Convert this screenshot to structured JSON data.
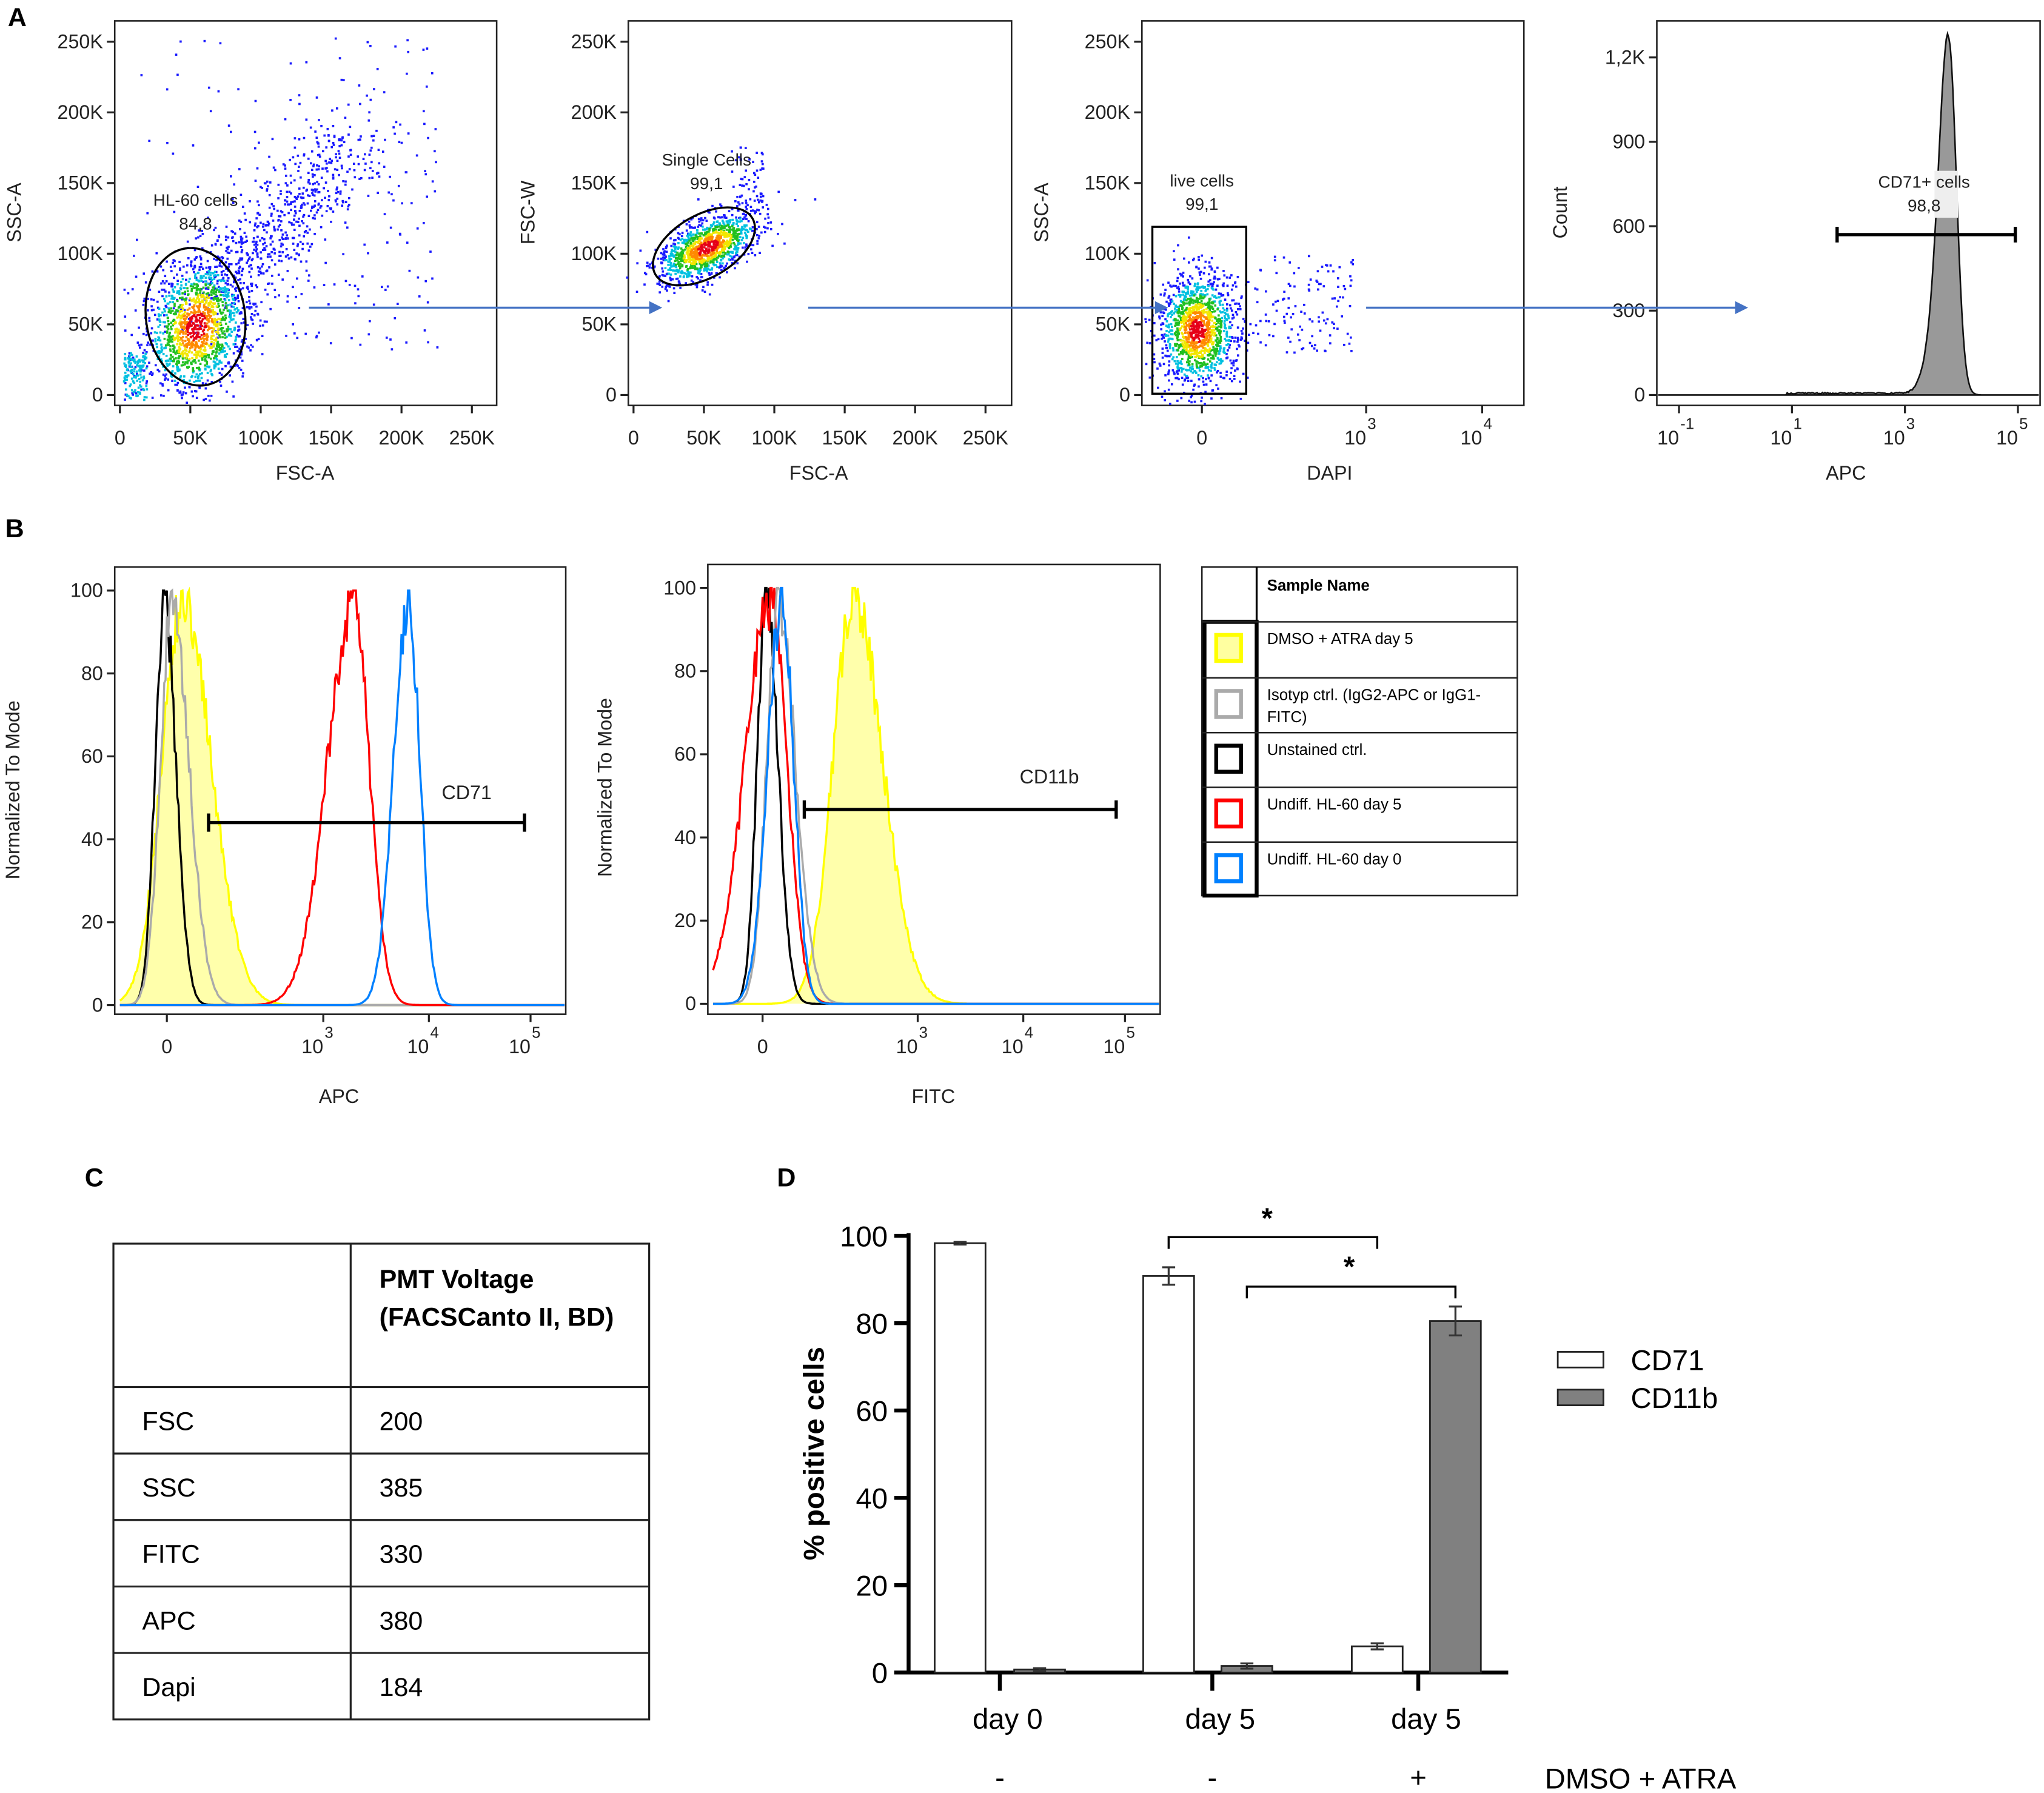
{
  "panel_labels": {
    "A": "A",
    "B": "B",
    "C": "C",
    "D": "D"
  },
  "colors": {
    "arrow": "#4472c4",
    "yellow": "#ffff00",
    "gray": "#aaaaaa",
    "black": "#000000",
    "red": "#ff0000",
    "blue": "#0080ff",
    "bar_cd11b": "#808080"
  },
  "chart_data": [
    {
      "id": "A1",
      "type": "scatter",
      "xlabel": "FSC-A",
      "ylabel": "SSC-A",
      "xlim": [
        0,
        262144
      ],
      "ylim": [
        0,
        262144
      ],
      "xticks": [
        {
          "value": 0,
          "label": "0"
        },
        {
          "value": 50000,
          "label": "50K"
        },
        {
          "value": 100000,
          "label": "100K"
        },
        {
          "value": 150000,
          "label": "150K"
        },
        {
          "value": 200000,
          "label": "200K"
        },
        {
          "value": 250000,
          "label": "250K"
        }
      ],
      "yticks": [
        {
          "value": 0,
          "label": "0"
        },
        {
          "value": 50000,
          "label": "50K"
        },
        {
          "value": 100000,
          "label": "100K"
        },
        {
          "value": 150000,
          "label": "150K"
        },
        {
          "value": 200000,
          "label": "200K"
        },
        {
          "value": 250000,
          "label": "250K"
        }
      ],
      "gate": {
        "name": "HL-60 cells",
        "value": "84,8",
        "shape": "ellipse"
      }
    },
    {
      "id": "A2",
      "type": "scatter",
      "xlabel": "FSC-A",
      "ylabel": "FSC-W",
      "xlim": [
        0,
        262144
      ],
      "ylim": [
        0,
        262144
      ],
      "xticks": [
        {
          "value": 0,
          "label": "0"
        },
        {
          "value": 50000,
          "label": "50K"
        },
        {
          "value": 100000,
          "label": "100K"
        },
        {
          "value": 150000,
          "label": "150K"
        },
        {
          "value": 200000,
          "label": "200K"
        },
        {
          "value": 250000,
          "label": "250K"
        }
      ],
      "yticks": [
        {
          "value": 0,
          "label": "0"
        },
        {
          "value": 50000,
          "label": "50K"
        },
        {
          "value": 100000,
          "label": "100K"
        },
        {
          "value": 150000,
          "label": "150K"
        },
        {
          "value": 200000,
          "label": "200K"
        },
        {
          "value": 250000,
          "label": "250K"
        }
      ],
      "gate": {
        "name": "Single Cells",
        "value": "99,1",
        "shape": "ellipse"
      }
    },
    {
      "id": "A3",
      "type": "scatter",
      "xlabel": "DAPI",
      "ylabel": "SSC-A",
      "xscale": "biexponential",
      "ylim": [
        0,
        262144
      ],
      "xticks": [
        {
          "value": 0,
          "label": "0",
          "exp": ""
        },
        {
          "value": 1000,
          "label": "10",
          "exp": "3"
        },
        {
          "value": 10000,
          "label": "10",
          "exp": "4"
        }
      ],
      "yticks": [
        {
          "value": 0,
          "label": "0"
        },
        {
          "value": 50000,
          "label": "50K"
        },
        {
          "value": 100000,
          "label": "100K"
        },
        {
          "value": 150000,
          "label": "150K"
        },
        {
          "value": 200000,
          "label": "200K"
        },
        {
          "value": 250000,
          "label": "250K"
        }
      ],
      "gate": {
        "name": "live cells",
        "value": "99,1",
        "shape": "rectangle"
      }
    },
    {
      "id": "A4",
      "type": "histogram",
      "xlabel": "APC",
      "ylabel": "Count",
      "xscale": "log",
      "ylim": [
        0,
        1300
      ],
      "xticks": [
        {
          "value": 0.1,
          "label": "10",
          "exp": "-1"
        },
        {
          "value": 10,
          "label": "10",
          "exp": "1"
        },
        {
          "value": 1000,
          "label": "10",
          "exp": "3"
        },
        {
          "value": 100000,
          "label": "10",
          "exp": "5"
        }
      ],
      "yticks": [
        {
          "value": 0,
          "label": "0"
        },
        {
          "value": 300,
          "label": "300"
        },
        {
          "value": 600,
          "label": "600"
        },
        {
          "value": 900,
          "label": "900"
        },
        {
          "value": 1200,
          "label": "1,2K"
        }
      ],
      "peak": {
        "apc": 5900,
        "count": 1270
      },
      "gate": {
        "name": "CD71+ cells",
        "value": "98,8",
        "range": [
          63,
          100000
        ]
      }
    },
    {
      "id": "B1",
      "type": "line",
      "xlabel": "APC",
      "ylabel": "Normalized To Mode",
      "xscale": "biexponential",
      "ylim": [
        0,
        100
      ],
      "xticks": [
        {
          "value": 0,
          "label": "0",
          "exp": ""
        },
        {
          "value": 1000,
          "label": "10",
          "exp": "3"
        },
        {
          "value": 10000,
          "label": "10",
          "exp": "4"
        },
        {
          "value": 100000,
          "label": "10",
          "exp": "5"
        }
      ],
      "yticks": [
        {
          "value": 0,
          "label": "0"
        },
        {
          "value": 20,
          "label": "20"
        },
        {
          "value": 40,
          "label": "40"
        },
        {
          "value": 60,
          "label": "60"
        },
        {
          "value": 80,
          "label": "80"
        },
        {
          "value": 100,
          "label": "100"
        }
      ],
      "gate": {
        "name": "CD71",
        "range": [
          80,
          85000
        ]
      },
      "series": [
        {
          "sample": "Unstained ctrl.",
          "color": "#000000",
          "peak": -5
        },
        {
          "sample": "Isotyp ctrl.",
          "color": "#aaaaaa",
          "peak": 10
        },
        {
          "sample": "DMSO + ATRA day 5",
          "color": "#ffff00",
          "peak": 30,
          "filled": true
        },
        {
          "sample": "Undiff. HL-60 day 5",
          "color": "#ff0000",
          "peak": 1950
        },
        {
          "sample": "Undiff. HL-60 day 0",
          "color": "#0080ff",
          "peak": 6500
        }
      ]
    },
    {
      "id": "B2",
      "type": "line",
      "xlabel": "FITC",
      "ylabel": "Normalized To Mode",
      "xscale": "biexponential",
      "ylim": [
        0,
        100
      ],
      "xticks": [
        {
          "value": 0,
          "label": "0",
          "exp": ""
        },
        {
          "value": 1000,
          "label": "10",
          "exp": "3"
        },
        {
          "value": 10000,
          "label": "10",
          "exp": "4"
        },
        {
          "value": 100000,
          "label": "10",
          "exp": "5"
        }
      ],
      "yticks": [
        {
          "value": 0,
          "label": "0"
        },
        {
          "value": 20,
          "label": "20"
        },
        {
          "value": 40,
          "label": "40"
        },
        {
          "value": 60,
          "label": "60"
        },
        {
          "value": 80,
          "label": "80"
        },
        {
          "value": 100,
          "label": "100"
        }
      ],
      "gate": {
        "name": "CD11b",
        "range": [
          80,
          80000
        ]
      },
      "series": [
        {
          "sample": "Unstained ctrl.",
          "color": "#000000",
          "peak": 7
        },
        {
          "sample": "Undiff. HL-60 day 5",
          "color": "#ff0000",
          "peak": 17
        },
        {
          "sample": "Isotyp ctrl.",
          "color": "#aaaaaa",
          "peak": 30
        },
        {
          "sample": "Undiff. HL-60 day 0",
          "color": "#0080ff",
          "peak": 37
        },
        {
          "sample": "DMSO + ATRA day 5",
          "color": "#ffff00",
          "peak": 245,
          "filled": true
        }
      ]
    },
    {
      "id": "D",
      "type": "bar",
      "ylabel": "% positive cells",
      "ylim": [
        0,
        100
      ],
      "yticks": [
        "0",
        "20",
        "40",
        "60",
        "80",
        "100"
      ],
      "categories": [
        "day 0",
        "day 5",
        "day 5"
      ],
      "treatment": {
        "label": "DMSO + ATRA",
        "values": [
          "-",
          "-",
          "+"
        ]
      },
      "series": [
        {
          "name": "CD71",
          "color": "#ffffff",
          "values": [
            98.3,
            90.8,
            6.0
          ],
          "errors": [
            0.3,
            2.0,
            0.7
          ]
        },
        {
          "name": "CD11b",
          "color": "#808080",
          "values": [
            0.7,
            1.5,
            80.5
          ],
          "errors": [
            0.3,
            0.6,
            3.3
          ]
        }
      ],
      "significance": [
        {
          "from": "CD71 day 5",
          "to": "CD71 day 5 DMSO + ATRA",
          "label": "*"
        },
        {
          "from": "CD11b day 5",
          "to": "CD11b day 5 DMSO + ATRA",
          "label": "*"
        }
      ],
      "legend": "right"
    }
  ],
  "legend_table": {
    "header": "Sample Name",
    "rows": [
      {
        "color": "#ffff00",
        "fill": "#ffffa0",
        "lines": [
          "DMSO + ATRA day 5"
        ]
      },
      {
        "color": "#aaaaaa",
        "fill": "#ffffff",
        "lines": [
          "Isotyp ctrl. (IgG2-APC or IgG1-",
          "FITC)"
        ]
      },
      {
        "color": "#000000",
        "fill": "#ffffff",
        "lines": [
          "Unstained ctrl."
        ]
      },
      {
        "color": "#ff0000",
        "fill": "#ffffff",
        "lines": [
          "Undiff. HL-60 day 5"
        ]
      },
      {
        "color": "#0080ff",
        "fill": "#ffffff",
        "lines": [
          "Undiff. HL-60 day 0"
        ]
      }
    ]
  },
  "pmt_table": {
    "header": [
      "PMT Voltage",
      "(FACSCanto II, BD)"
    ],
    "rows": [
      {
        "channel": "FSC",
        "voltage": "200"
      },
      {
        "channel": "SSC",
        "voltage": "385"
      },
      {
        "channel": "FITC",
        "voltage": "330"
      },
      {
        "channel": "APC",
        "voltage": "380"
      },
      {
        "channel": "Dapi",
        "voltage": "184"
      }
    ]
  }
}
